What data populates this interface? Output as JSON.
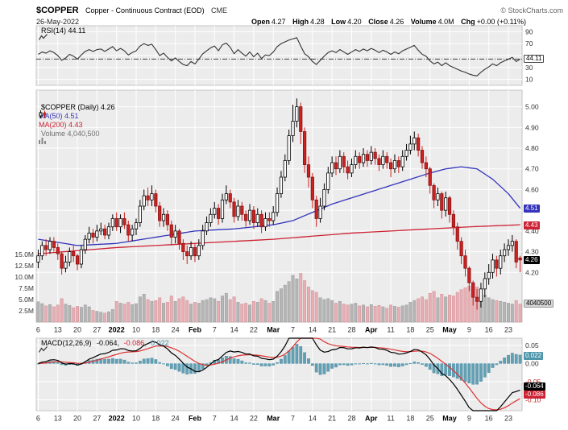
{
  "header": {
    "symbol": "$COPPER",
    "name": "Copper - Continuous Contract (EOD)",
    "exchange": "CME",
    "copyright": "© StockCharts.com",
    "date": "26-May-2022",
    "quote": [
      {
        "label": "Open",
        "value": "4.27"
      },
      {
        "label": "High",
        "value": "4.28"
      },
      {
        "label": "Low",
        "value": "4.20"
      },
      {
        "label": "Close",
        "value": "4.26"
      },
      {
        "label": "Volume",
        "value": "4.0M"
      },
      {
        "label": "Chg",
        "value": "+0.00 (+0.11%)"
      }
    ]
  },
  "rsi_panel": {
    "legend": "RSI(14) 44.11",
    "badge": "44.11",
    "axis_labels": [
      "90",
      "70",
      "30",
      "10"
    ]
  },
  "main_panel": {
    "legend_symbol": "$COPPER (Daily) 4.26",
    "legend_ma50": "MA(50) 4.51",
    "legend_ma200": "MA(200) 4.43",
    "legend_volume": "Volume 4,040,500",
    "badge_ma50": "4.51",
    "badge_ma200": "4.43",
    "badge_close": "4.26",
    "badge_volume": "4040500",
    "price_axis": [
      "5.00",
      "4.90",
      "4.80",
      "4.70",
      "4.60",
      "4.50",
      "4.40",
      "4.30",
      "4.20"
    ],
    "volume_axis": [
      "15.0M",
      "12.5M",
      "10.0M",
      "7.5M",
      "5.0M",
      "2.5M"
    ]
  },
  "macd_panel": {
    "legend_name": "MACD(12,26,9)",
    "legend_macd": "-0.064,",
    "legend_signal": "-0.086,",
    "legend_hist": "0.022",
    "badge_hist": "0.022",
    "badge_macd": "-0.064",
    "badge_signal": "-0.086",
    "axis_labels": [
      "0.05",
      "0.00",
      "-0.05",
      "-0.10"
    ]
  },
  "colors": {
    "panel_bg": "#ececec",
    "panel_border": "#c4c4c4",
    "grid": "#ffffff",
    "up": "#000000",
    "down": "#cc2222",
    "ma50": "#3333bb",
    "ma200": "#cc2233",
    "volume_up": "#b5b5b5",
    "volume_down": "#e7aeb4",
    "macd_line": "#000000",
    "macd_signal": "#dd3333",
    "macd_hist": "#64a0b4",
    "rsi_line": "#333333"
  },
  "chart_data": {
    "type": "candlestick",
    "title": "$COPPER Copper - Continuous Contract (EOD) CME, 26-May-2022",
    "x_ticks": [
      {
        "i": 0,
        "label": "6"
      },
      {
        "i": 5,
        "label": "13"
      },
      {
        "i": 10,
        "label": "20"
      },
      {
        "i": 15,
        "label": "27"
      },
      {
        "i": 20,
        "label": "2022",
        "bold": true
      },
      {
        "i": 25,
        "label": "10"
      },
      {
        "i": 30,
        "label": "18"
      },
      {
        "i": 35,
        "label": "24"
      },
      {
        "i": 40,
        "label": "Feb",
        "bold": true
      },
      {
        "i": 45,
        "label": "7"
      },
      {
        "i": 50,
        "label": "14"
      },
      {
        "i": 55,
        "label": "22"
      },
      {
        "i": 60,
        "label": "Mar",
        "bold": true
      },
      {
        "i": 65,
        "label": "7"
      },
      {
        "i": 70,
        "label": "14"
      },
      {
        "i": 75,
        "label": "21"
      },
      {
        "i": 80,
        "label": "28"
      },
      {
        "i": 85,
        "label": "Apr",
        "bold": true
      },
      {
        "i": 90,
        "label": "11"
      },
      {
        "i": 95,
        "label": "18"
      },
      {
        "i": 100,
        "label": "25"
      },
      {
        "i": 105,
        "label": "May",
        "bold": true
      },
      {
        "i": 110,
        "label": "9"
      },
      {
        "i": 115,
        "label": "16"
      },
      {
        "i": 120,
        "label": "23"
      }
    ],
    "price": {
      "ylim": [
        3.96,
        5.08
      ],
      "y_ticks": [
        5.0,
        4.9,
        4.8,
        4.7,
        4.6,
        4.5,
        4.4,
        4.3,
        4.2
      ],
      "open": [
        4.25,
        4.28,
        4.33,
        4.31,
        4.35,
        4.32,
        4.29,
        4.22,
        4.25,
        4.3,
        4.28,
        4.24,
        4.31,
        4.36,
        4.39,
        4.37,
        4.4,
        4.41,
        4.38,
        4.42,
        4.46,
        4.42,
        4.46,
        4.43,
        4.38,
        4.41,
        4.44,
        4.52,
        4.57,
        4.55,
        4.58,
        4.52,
        4.45,
        4.48,
        4.43,
        4.37,
        4.4,
        4.34,
        4.3,
        4.28,
        4.32,
        4.28,
        4.33,
        4.4,
        4.44,
        4.48,
        4.51,
        4.46,
        4.55,
        4.58,
        4.54,
        4.47,
        4.52,
        4.48,
        4.45,
        4.5,
        4.44,
        4.48,
        4.42,
        4.46,
        4.45,
        4.49,
        4.58,
        4.66,
        4.74,
        4.86,
        4.93,
        5.0,
        4.88,
        4.72,
        4.66,
        4.55,
        4.46,
        4.52,
        4.6,
        4.68,
        4.73,
        4.7,
        4.76,
        4.71,
        4.68,
        4.72,
        4.76,
        4.73,
        4.77,
        4.74,
        4.78,
        4.75,
        4.72,
        4.76,
        4.73,
        4.7,
        4.74,
        4.71,
        4.76,
        4.79,
        4.82,
        4.85,
        4.79,
        4.73,
        4.7,
        4.62,
        4.55,
        4.58,
        4.5,
        4.56,
        4.48,
        4.42,
        4.35,
        4.28,
        4.22,
        4.15,
        4.08,
        4.06,
        4.12,
        4.17,
        4.2,
        4.26,
        4.22,
        4.28,
        4.31,
        4.33,
        4.35,
        4.27
      ],
      "high": [
        4.31,
        4.35,
        4.36,
        4.37,
        4.37,
        4.34,
        4.3,
        4.28,
        4.32,
        4.33,
        4.29,
        4.33,
        4.38,
        4.42,
        4.41,
        4.43,
        4.44,
        4.43,
        4.44,
        4.48,
        4.49,
        4.48,
        4.49,
        4.45,
        4.43,
        4.46,
        4.55,
        4.6,
        4.61,
        4.62,
        4.6,
        4.54,
        4.51,
        4.5,
        4.45,
        4.43,
        4.41,
        4.36,
        4.33,
        4.35,
        4.34,
        4.36,
        4.43,
        4.47,
        4.51,
        4.54,
        4.53,
        4.58,
        4.62,
        4.6,
        4.56,
        4.55,
        4.54,
        4.5,
        4.53,
        4.52,
        4.51,
        4.5,
        4.49,
        4.49,
        4.52,
        4.61,
        4.69,
        4.77,
        4.89,
        5.01,
        5.04,
        5.02,
        4.9,
        4.76,
        4.68,
        4.57,
        4.56,
        4.63,
        4.71,
        4.76,
        4.76,
        4.79,
        4.78,
        4.74,
        4.75,
        4.79,
        4.78,
        4.8,
        4.79,
        4.81,
        4.8,
        4.77,
        4.79,
        4.78,
        4.75,
        4.77,
        4.76,
        4.79,
        4.82,
        4.86,
        4.88,
        4.87,
        4.81,
        4.76,
        4.71,
        4.63,
        4.61,
        4.59,
        4.59,
        4.57,
        4.5,
        4.44,
        4.37,
        4.31,
        4.23,
        4.16,
        4.12,
        4.15,
        4.2,
        4.24,
        4.29,
        4.28,
        4.31,
        4.34,
        4.36,
        4.38,
        4.36,
        4.28
      ],
      "low": [
        4.22,
        4.26,
        4.28,
        4.29,
        4.3,
        4.26,
        4.19,
        4.2,
        4.23,
        4.25,
        4.21,
        4.22,
        4.29,
        4.34,
        4.34,
        4.35,
        4.38,
        4.36,
        4.36,
        4.4,
        4.4,
        4.39,
        4.41,
        4.35,
        4.35,
        4.38,
        4.42,
        4.5,
        4.52,
        4.52,
        4.49,
        4.42,
        4.42,
        4.4,
        4.33,
        4.34,
        4.31,
        4.26,
        4.24,
        4.26,
        4.25,
        4.26,
        4.31,
        4.38,
        4.42,
        4.46,
        4.43,
        4.44,
        4.53,
        4.51,
        4.44,
        4.45,
        4.45,
        4.42,
        4.43,
        4.41,
        4.42,
        4.39,
        4.4,
        4.42,
        4.43,
        4.47,
        4.56,
        4.64,
        4.72,
        4.83,
        4.9,
        4.82,
        4.68,
        4.61,
        4.51,
        4.42,
        4.44,
        4.5,
        4.58,
        4.66,
        4.67,
        4.68,
        4.68,
        4.65,
        4.66,
        4.7,
        4.7,
        4.71,
        4.71,
        4.72,
        4.72,
        4.69,
        4.7,
        4.7,
        4.66,
        4.68,
        4.68,
        4.69,
        4.74,
        4.77,
        4.79,
        4.76,
        4.7,
        4.66,
        4.58,
        4.51,
        4.52,
        4.46,
        4.47,
        4.44,
        4.38,
        4.31,
        4.24,
        4.18,
        4.11,
        4.04,
        4.02,
        4.03,
        4.08,
        4.14,
        4.17,
        4.18,
        4.19,
        4.25,
        4.28,
        4.3,
        4.22,
        4.2
      ],
      "close": [
        4.28,
        4.33,
        4.31,
        4.35,
        4.32,
        4.29,
        4.22,
        4.25,
        4.3,
        4.28,
        4.24,
        4.31,
        4.36,
        4.39,
        4.37,
        4.4,
        4.41,
        4.38,
        4.42,
        4.46,
        4.42,
        4.46,
        4.43,
        4.38,
        4.41,
        4.44,
        4.52,
        4.57,
        4.55,
        4.58,
        4.52,
        4.45,
        4.48,
        4.43,
        4.37,
        4.4,
        4.34,
        4.3,
        4.28,
        4.32,
        4.28,
        4.33,
        4.4,
        4.44,
        4.48,
        4.51,
        4.46,
        4.55,
        4.58,
        4.54,
        4.47,
        4.52,
        4.48,
        4.45,
        4.5,
        4.44,
        4.48,
        4.42,
        4.46,
        4.45,
        4.49,
        4.58,
        4.66,
        4.74,
        4.86,
        4.93,
        5.0,
        4.88,
        4.72,
        4.66,
        4.55,
        4.46,
        4.52,
        4.6,
        4.68,
        4.73,
        4.7,
        4.76,
        4.71,
        4.68,
        4.72,
        4.76,
        4.73,
        4.77,
        4.74,
        4.78,
        4.75,
        4.72,
        4.76,
        4.73,
        4.7,
        4.74,
        4.71,
        4.76,
        4.79,
        4.82,
        4.85,
        4.79,
        4.73,
        4.7,
        4.62,
        4.55,
        4.58,
        4.5,
        4.56,
        4.48,
        4.42,
        4.35,
        4.28,
        4.22,
        4.15,
        4.08,
        4.06,
        4.12,
        4.17,
        4.2,
        4.26,
        4.22,
        4.28,
        4.31,
        4.33,
        4.35,
        4.25,
        4.26
      ],
      "last": {
        "open": 4.27,
        "high": 4.28,
        "low": 4.2,
        "close": 4.26
      }
    },
    "volume": {
      "type": "bar",
      "axis_ticks_millions": [
        15,
        12.5,
        10,
        7.5,
        5,
        2.5
      ],
      "values_millions": [
        4.5,
        4.1,
        3.6,
        3.9,
        3.4,
        3.8,
        5.2,
        4.0,
        3.7,
        3.2,
        3.5,
        3.3,
        3.8,
        3.4,
        2.6,
        2.4,
        2.2,
        2.0,
        2.3,
        2.8,
        4.6,
        4.2,
        4.0,
        4.4,
        3.9,
        4.1,
        5.6,
        6.2,
        5.0,
        4.6,
        4.8,
        5.4,
        4.2,
        4.4,
        5.8,
        4.6,
        5.2,
        5.6,
        4.8,
        4.0,
        4.4,
        4.2,
        4.8,
        5.0,
        5.4,
        5.2,
        4.6,
        5.8,
        6.4,
        5.0,
        5.6,
        4.4,
        4.0,
        4.2,
        3.8,
        4.6,
        4.4,
        5.2,
        4.8,
        4.2,
        4.6,
        6.8,
        7.4,
        8.2,
        9.0,
        10.4,
        9.6,
        10.8,
        9.2,
        7.8,
        7.0,
        6.6,
        5.4,
        5.0,
        5.2,
        4.8,
        4.2,
        4.6,
        4.0,
        3.8,
        4.0,
        4.2,
        3.6,
        3.8,
        3.4,
        3.9,
        3.5,
        3.7,
        3.4,
        3.1,
        3.8,
        3.5,
        3.3,
        3.6,
        3.8,
        4.4,
        4.8,
        5.2,
        5.6,
        5.0,
        6.4,
        6.8,
        5.4,
        6.2,
        5.6,
        6.0,
        5.8,
        6.6,
        7.2,
        7.6,
        8.0,
        8.4,
        7.8,
        6.6,
        6.0,
        5.4,
        5.0,
        4.8,
        4.6,
        4.4,
        4.2,
        4.0,
        4.8,
        4.0
      ],
      "current": 4040500
    },
    "ma50": {
      "type": "line",
      "current": 4.51,
      "keypoints": [
        [
          0,
          4.36
        ],
        [
          10,
          4.33
        ],
        [
          20,
          4.34
        ],
        [
          30,
          4.37
        ],
        [
          40,
          4.4
        ],
        [
          50,
          4.41
        ],
        [
          60,
          4.43
        ],
        [
          65,
          4.45
        ],
        [
          70,
          4.49
        ],
        [
          75,
          4.53
        ],
        [
          80,
          4.56
        ],
        [
          85,
          4.59
        ],
        [
          90,
          4.62
        ],
        [
          95,
          4.65
        ],
        [
          100,
          4.68
        ],
        [
          104,
          4.7
        ],
        [
          108,
          4.71
        ],
        [
          112,
          4.7
        ],
        [
          116,
          4.65
        ],
        [
          120,
          4.58
        ],
        [
          123,
          4.51
        ]
      ]
    },
    "ma200": {
      "type": "line",
      "current": 4.43,
      "keypoints": [
        [
          0,
          4.29
        ],
        [
          20,
          4.32
        ],
        [
          40,
          4.34
        ],
        [
          60,
          4.36
        ],
        [
          80,
          4.39
        ],
        [
          100,
          4.41
        ],
        [
          110,
          4.42
        ],
        [
          123,
          4.43
        ]
      ]
    },
    "rsi": {
      "type": "line",
      "current": 44.11,
      "ylim": [
        0,
        100
      ],
      "y_ticks": [
        90,
        70,
        30,
        10
      ],
      "grid": [
        90,
        70,
        50,
        30,
        10
      ],
      "values": [
        52,
        56,
        54,
        58,
        55,
        50,
        42,
        46,
        52,
        49,
        44,
        51,
        57,
        60,
        57,
        60,
        61,
        57,
        61,
        65,
        58,
        62,
        58,
        51,
        55,
        58,
        66,
        70,
        67,
        69,
        60,
        50,
        54,
        47,
        41,
        46,
        40,
        35,
        33,
        40,
        36,
        44,
        53,
        58,
        63,
        66,
        58,
        68,
        71,
        64,
        53,
        60,
        54,
        49,
        56,
        48,
        54,
        45,
        51,
        50,
        56,
        65,
        70,
        73,
        76,
        78,
        80,
        66,
        53,
        48,
        40,
        35,
        42,
        49,
        55,
        58,
        55,
        60,
        56,
        52,
        56,
        60,
        57,
        61,
        58,
        62,
        59,
        55,
        59,
        56,
        52,
        56,
        53,
        58,
        61,
        64,
        67,
        59,
        52,
        49,
        41,
        36,
        39,
        33,
        38,
        33,
        30,
        27,
        24,
        22,
        19,
        17,
        16,
        22,
        27,
        31,
        36,
        33,
        38,
        41,
        44,
        47,
        40,
        44
      ],
      "legend": "RSI(14) 44.11"
    },
    "macd": {
      "type": "line+histogram",
      "params": [
        12,
        26,
        9
      ],
      "computed_from": "price.close EMA(12)-EMA(26), signal=EMA(9)",
      "current": {
        "macd": -0.064,
        "signal": -0.086,
        "hist": 0.022
      },
      "ylim": [
        -0.13,
        0.07
      ],
      "y_ticks": [
        0.05,
        0.0,
        -0.05,
        -0.1
      ]
    }
  }
}
